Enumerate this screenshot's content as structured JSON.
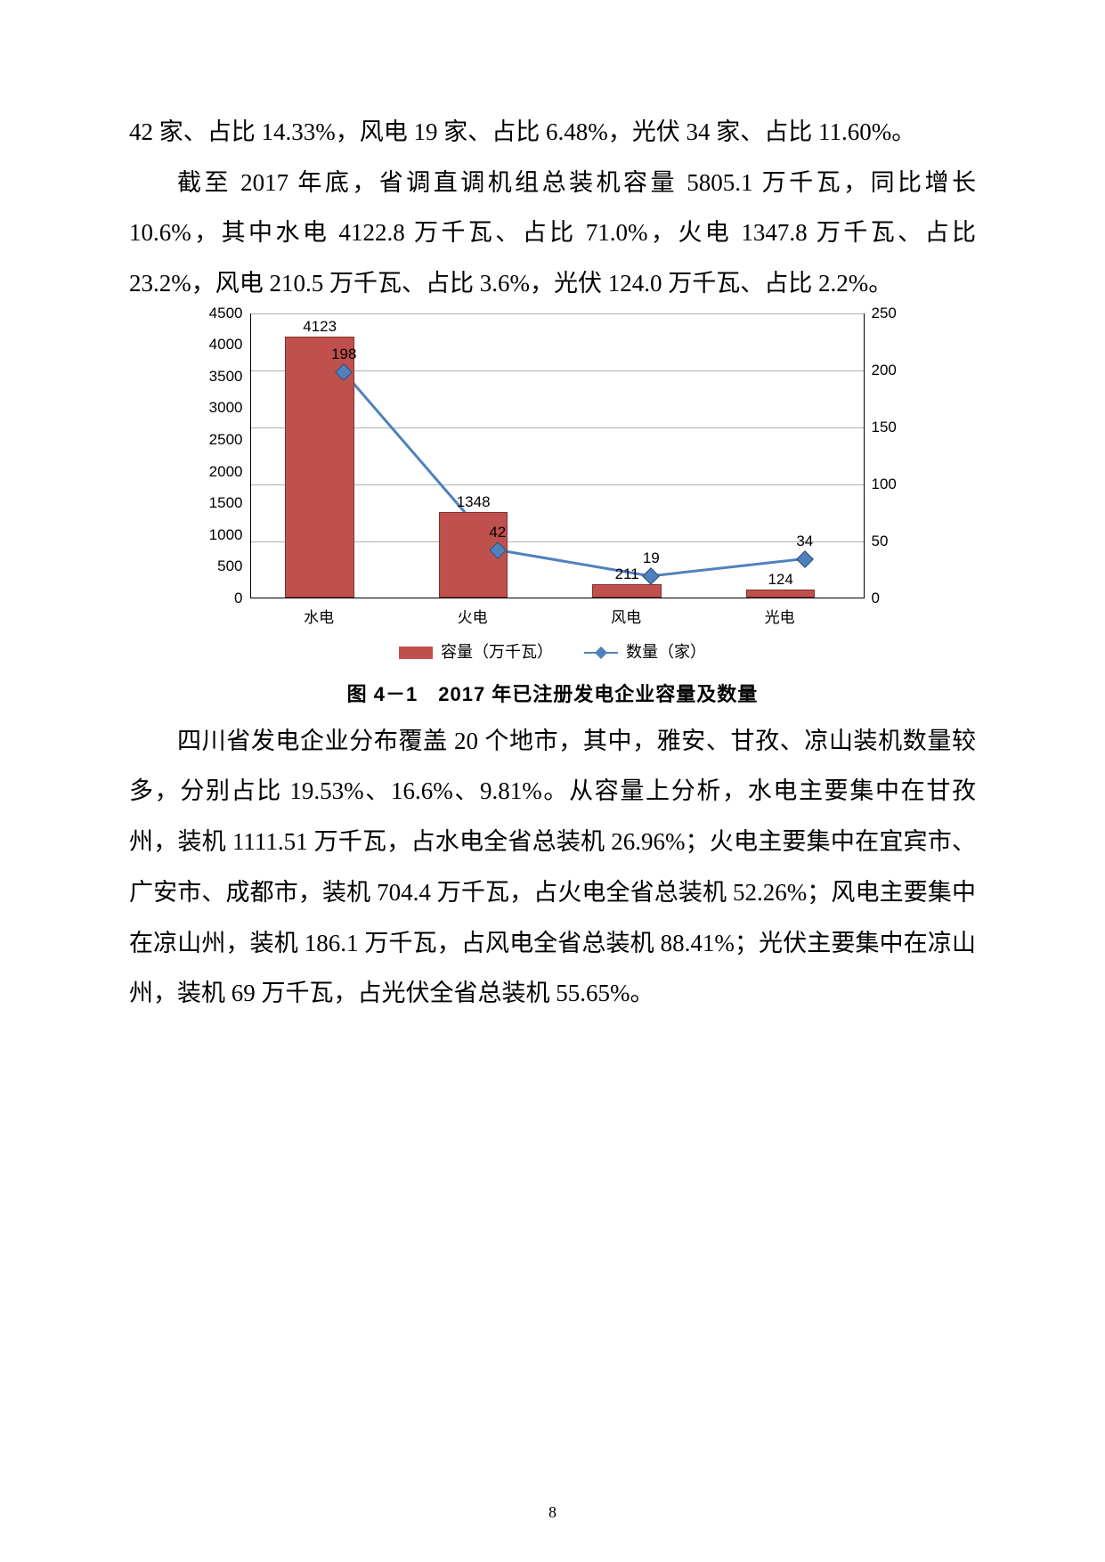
{
  "para1": "42 家、占比 14.33%，风电 19 家、占比 6.48%，光伏 34 家、占比 11.60%。",
  "para2": "截至 2017 年底，省调直调机组总装机容量 5805.1 万千瓦，同比增长 10.6%，其中水电 4122.8 万千瓦、占比 71.0%，火电 1347.8 万千瓦、占比 23.2%，风电 210.5 万千瓦、占比 3.6%，光伏 124.0 万千瓦、占比 2.2%。",
  "chart": {
    "type": "bar+line",
    "categories": [
      "水电",
      "火电",
      "风电",
      "光电"
    ],
    "bars": {
      "series_label": "容量（万千瓦）",
      "values": [
        4123,
        1348,
        211,
        124
      ],
      "labels": [
        "4123",
        "1348",
        "211",
        "124"
      ],
      "color": "#c0504d",
      "border_color": "#7f3230",
      "y_axis": {
        "min": 0,
        "max": 4500,
        "step": 500
      }
    },
    "line": {
      "series_label": "数量（家）",
      "values": [
        198,
        42,
        19,
        34
      ],
      "labels": [
        "198",
        "42",
        "19",
        "34"
      ],
      "color": "#4f81bd",
      "marker_border": "#2c4d75",
      "y_axis": {
        "min": 0,
        "max": 250,
        "step": 50
      }
    },
    "left_ticks": [
      "0",
      "500",
      "1000",
      "1500",
      "2000",
      "2500",
      "3000",
      "3500",
      "4000",
      "4500"
    ],
    "right_ticks": [
      "0",
      "50",
      "100",
      "150",
      "200",
      "250"
    ],
    "grid_color": "#b0b0b0",
    "background_color": "#ffffff"
  },
  "caption": "图 4－1　2017 年已注册发电企业容量及数量",
  "para3": "四川省发电企业分布覆盖 20 个地市，其中，雅安、甘孜、凉山装机数量较多，分别占比 19.53%、16.6%、9.81%。从容量上分析，水电主要集中在甘孜州，装机 1111.51 万千瓦，占水电全省总装机 26.96%；火电主要集中在宜宾市、广安市、成都市，装机 704.4 万千瓦，占火电全省总装机 52.26%；风电主要集中在凉山州，装机 186.1 万千瓦，占风电全省总装机 88.41%；光伏主要集中在凉山州，装机 69 万千瓦，占光伏全省总装机 55.65%。",
  "page_number": "8"
}
